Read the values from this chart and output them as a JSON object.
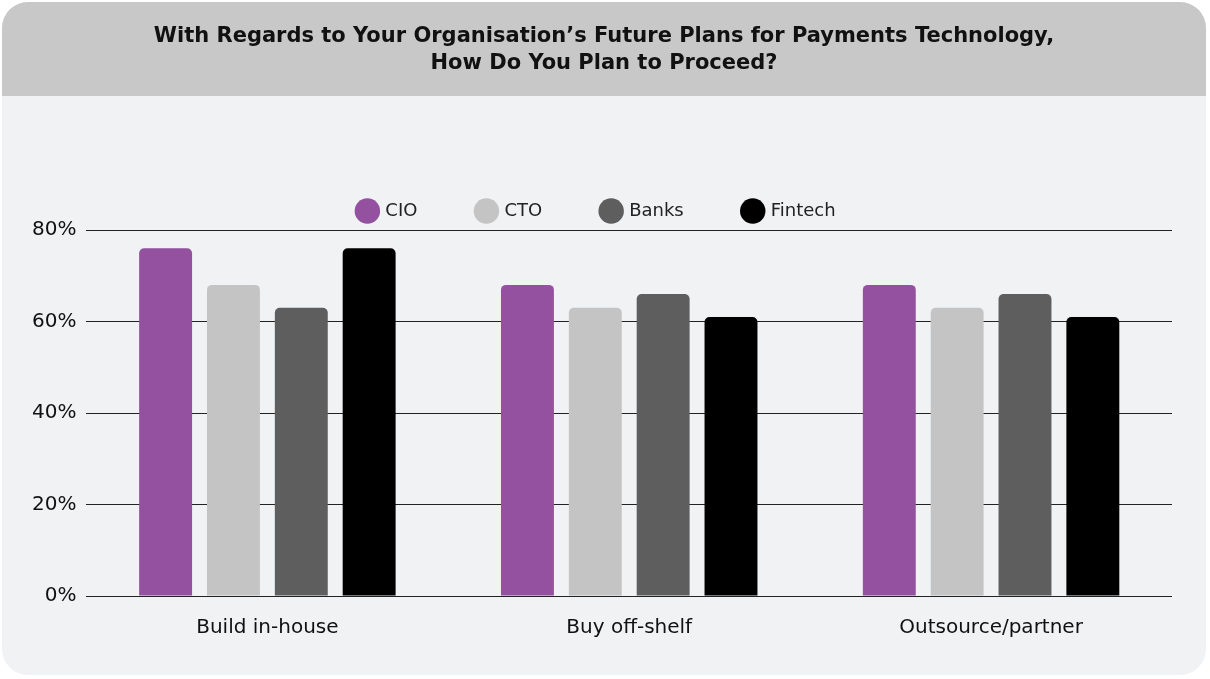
{
  "chart_data": {
    "type": "bar",
    "title": "With Regards to Your Organisation’s Future Plans for Payments Technology,\nHow Do You Plan to Proceed?",
    "categories": [
      "Build in-house",
      "Buy off-shelf",
      "Outsource/partner"
    ],
    "series": [
      {
        "name": "CIO",
        "color": "#9351a0",
        "values": [
          76,
          68,
          68
        ]
      },
      {
        "name": "CTO",
        "color": "#c4c4c4",
        "values": [
          68,
          63,
          63
        ]
      },
      {
        "name": "Banks",
        "color": "#5e5e5e",
        "values": [
          63,
          66,
          66
        ]
      },
      {
        "name": "Fintech",
        "color": "#000000",
        "values": [
          76,
          61,
          61
        ]
      }
    ],
    "ylim": [
      0,
      80
    ],
    "yticks": [
      {
        "value": 0,
        "label": "0%"
      },
      {
        "value": 20,
        "label": "20%"
      },
      {
        "value": 40,
        "label": "40%"
      },
      {
        "value": 60,
        "label": "60%"
      },
      {
        "value": 80,
        "label": "80%"
      }
    ],
    "grid": "y",
    "legend": "top"
  }
}
